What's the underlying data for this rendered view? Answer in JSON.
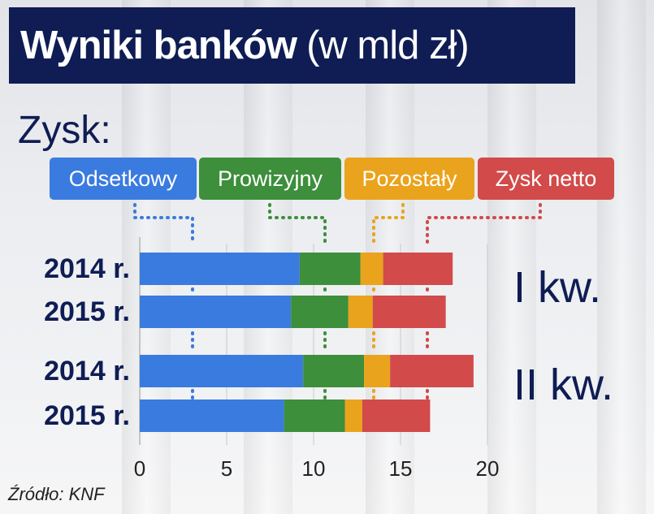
{
  "header": {
    "title_bold": "Wyniki banków",
    "title_rest": "(w mld zł)"
  },
  "subheading": "Zysk:",
  "source": "Źródło: KNF",
  "colors": {
    "odsetkowy": "#3a7bdf",
    "prowizyjny": "#3d8f3b",
    "pozostaly": "#eaa31c",
    "zysk_netto": "#d24a4a",
    "navy": "#0f1d54"
  },
  "legend": [
    {
      "key": "odsetkowy",
      "label": "Odsetkowy"
    },
    {
      "key": "prowizyjny",
      "label": "Prowizyjny"
    },
    {
      "key": "pozostaly",
      "label": "Pozostały"
    },
    {
      "key": "zysk_netto",
      "label": "Zysk netto"
    }
  ],
  "chart_data": {
    "type": "bar",
    "orientation": "horizontal",
    "stacked": true,
    "categories": [
      "2014 r.",
      "2015 r.",
      "2014 r.",
      "2015 r."
    ],
    "groups": [
      {
        "label": "I kw.",
        "rows": [
          0,
          1
        ]
      },
      {
        "label": "II kw.",
        "rows": [
          2,
          3
        ]
      }
    ],
    "series": [
      {
        "name": "Odsetkowy",
        "values": [
          9.2,
          8.7,
          9.4,
          8.3
        ]
      },
      {
        "name": "Prowizyjny",
        "values": [
          3.5,
          3.3,
          3.5,
          3.5
        ]
      },
      {
        "name": "Pozostały",
        "values": [
          1.3,
          1.4,
          1.5,
          1.0
        ]
      },
      {
        "name": "Zysk netto",
        "values": [
          4.0,
          4.2,
          4.8,
          3.9
        ]
      }
    ],
    "xlim": [
      0,
      20
    ],
    "xticks": [
      "0",
      "5",
      "10",
      "15",
      "20"
    ],
    "grid": true
  }
}
